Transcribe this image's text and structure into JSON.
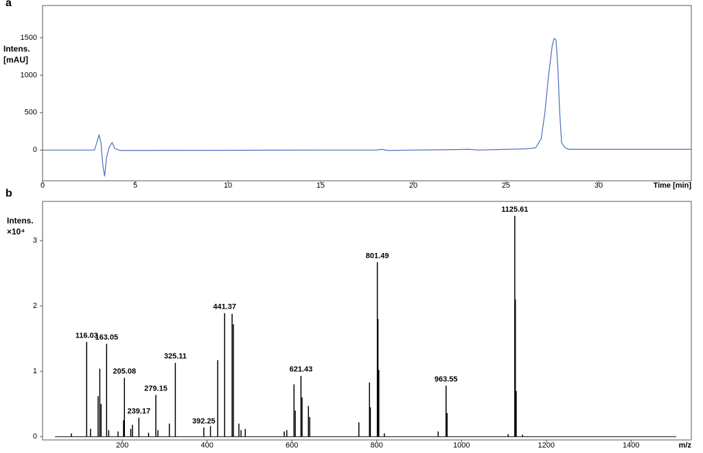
{
  "chart_data": [
    {
      "type": "line",
      "panel_label": "a",
      "y_label": [
        "Intens.",
        "[mAU]"
      ],
      "x_label": "Time [min]",
      "color": "#4a6bbf",
      "x": [
        0,
        2.8,
        2.95,
        3.05,
        3.15,
        3.25,
        3.35,
        3.45,
        3.6,
        3.75,
        3.9,
        4.2,
        10,
        15,
        18,
        18.3,
        18.6,
        20,
        22,
        23,
        23.5,
        25,
        26,
        26.6,
        26.9,
        27.1,
        27.3,
        27.5,
        27.6,
        27.7,
        27.8,
        27.9,
        28.0,
        28.1,
        28.2,
        28.4,
        30,
        35
      ],
      "values": [
        0,
        0,
        120,
        200,
        100,
        -200,
        -350,
        -100,
        40,
        100,
        20,
        -5,
        -3,
        0,
        0,
        10,
        -5,
        0,
        5,
        10,
        0,
        10,
        15,
        30,
        150,
        500,
        1000,
        1400,
        1490,
        1470,
        1100,
        500,
        100,
        60,
        30,
        10,
        10,
        10
      ],
      "xlim": [
        0,
        35
      ],
      "ylim": [
        -410,
        1930
      ],
      "xticks": [
        0,
        5,
        10,
        15,
        20,
        25,
        30
      ],
      "yticks": [
        0,
        500,
        1000,
        1500
      ]
    },
    {
      "type": "stem",
      "panel_label": "b",
      "y_label": [
        "Intens.",
        "×10⁴"
      ],
      "x_label": "m/z",
      "color": "#000000",
      "x": [
        80,
        116.03,
        125,
        143,
        147,
        150,
        163.05,
        168,
        190,
        203,
        205.08,
        220,
        224,
        239.17,
        262,
        279.15,
        284,
        311,
        325.11,
        392.25,
        408,
        425,
        441.37,
        459,
        462,
        475,
        480,
        490,
        582,
        588,
        605,
        608,
        621.43,
        624,
        639,
        642,
        758,
        783,
        785,
        801.49,
        803,
        805,
        818,
        945,
        963.55,
        966,
        1110,
        1125.61,
        1127,
        1129,
        1144
      ],
      "values": [
        0.05,
        1.45,
        0.12,
        0.62,
        1.04,
        0.5,
        1.42,
        0.1,
        0.08,
        0.25,
        0.9,
        0.12,
        0.18,
        0.29,
        0.06,
        0.64,
        0.1,
        0.2,
        1.13,
        0.14,
        0.16,
        1.17,
        1.89,
        1.88,
        1.72,
        0.2,
        0.1,
        0.12,
        0.08,
        0.1,
        0.8,
        0.4,
        0.93,
        0.6,
        0.47,
        0.3,
        0.22,
        0.83,
        0.45,
        2.67,
        1.8,
        1.02,
        0.05,
        0.08,
        0.78,
        0.36,
        0.04,
        3.38,
        2.1,
        0.7,
        0.03
      ],
      "annotations": [
        116.03,
        163.05,
        205.08,
        239.17,
        279.15,
        325.11,
        392.25,
        441.37,
        621.43,
        801.49,
        963.55,
        1125.61
      ],
      "xlim": [
        12,
        1542
      ],
      "ylim": [
        -0.05,
        3.6
      ],
      "xticks": [
        200,
        400,
        600,
        800,
        1000,
        1200,
        1400
      ],
      "yticks": [
        0,
        1,
        2,
        3
      ]
    }
  ]
}
